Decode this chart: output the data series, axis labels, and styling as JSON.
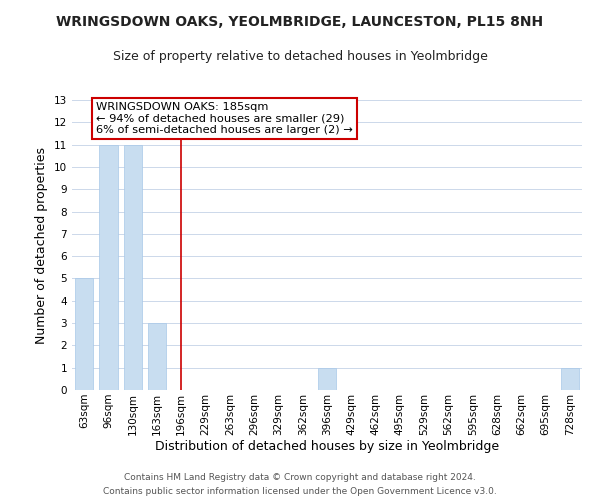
{
  "title": "WRINGSDOWN OAKS, YEOLMBRIDGE, LAUNCESTON, PL15 8NH",
  "subtitle": "Size of property relative to detached houses in Yeolmbridge",
  "xlabel": "Distribution of detached houses by size in Yeolmbridge",
  "ylabel": "Number of detached properties",
  "categories": [
    "63sqm",
    "96sqm",
    "130sqm",
    "163sqm",
    "196sqm",
    "229sqm",
    "263sqm",
    "296sqm",
    "329sqm",
    "362sqm",
    "396sqm",
    "429sqm",
    "462sqm",
    "495sqm",
    "529sqm",
    "562sqm",
    "595sqm",
    "628sqm",
    "662sqm",
    "695sqm",
    "728sqm"
  ],
  "values": [
    5,
    11,
    11,
    3,
    0,
    0,
    0,
    0,
    0,
    0,
    1,
    0,
    0,
    0,
    0,
    0,
    0,
    0,
    0,
    0,
    1
  ],
  "bar_color": "#c8ddf0",
  "bar_edge_color": "#a8c8e8",
  "vline_x": 3.97,
  "vline_color": "#cc0000",
  "annotation_title": "WRINGSDOWN OAKS: 185sqm",
  "annotation_line1": "← 94% of detached houses are smaller (29)",
  "annotation_line2": "6% of semi-detached houses are larger (2) →",
  "annotation_box_color": "#ffffff",
  "annotation_box_edgecolor": "#cc0000",
  "ylim": [
    0,
    13
  ],
  "yticks": [
    0,
    1,
    2,
    3,
    4,
    5,
    6,
    7,
    8,
    9,
    10,
    11,
    12,
    13
  ],
  "footer1": "Contains HM Land Registry data © Crown copyright and database right 2024.",
  "footer2": "Contains public sector information licensed under the Open Government Licence v3.0.",
  "grid_color": "#ccd8ea",
  "fig_bg": "#ffffff",
  "title_fontsize": 10,
  "subtitle_fontsize": 9,
  "tick_fontsize": 7.5,
  "label_fontsize": 9,
  "footer_fontsize": 6.5
}
